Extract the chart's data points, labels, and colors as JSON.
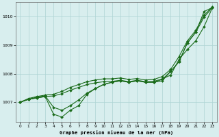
{
  "background_color": "#d8eeee",
  "grid_color": "#aed4d4",
  "line_color": "#1a6b1a",
  "marker_color": "#1a6b1a",
  "title": "Graphe pression niveau de la mer (hPa)",
  "xlim": [
    -0.5,
    23.5
  ],
  "ylim": [
    1006.3,
    1010.5
  ],
  "yticks": [
    1007,
    1008,
    1009,
    1010
  ],
  "xticks": [
    0,
    1,
    2,
    3,
    4,
    5,
    6,
    7,
    8,
    9,
    10,
    11,
    12,
    13,
    14,
    15,
    16,
    17,
    18,
    19,
    20,
    21,
    22,
    23
  ],
  "line1": [
    1007.0,
    1007.1,
    1007.15,
    1007.2,
    1007.22,
    1007.3,
    1007.42,
    1007.52,
    1007.62,
    1007.68,
    1007.72,
    1007.73,
    1007.77,
    1007.72,
    1007.77,
    1007.72,
    1007.73,
    1007.82,
    1007.95,
    1008.5,
    1008.85,
    1009.15,
    1009.65,
    1010.32
  ],
  "line2": [
    1007.0,
    1007.1,
    1007.18,
    1007.22,
    1006.82,
    1006.72,
    1006.88,
    1007.08,
    1007.32,
    1007.48,
    1007.62,
    1007.7,
    1007.75,
    1007.7,
    1007.75,
    1007.7,
    1007.7,
    1007.75,
    1008.08,
    1008.42,
    1009.08,
    1009.45,
    1010.18,
    1010.32
  ],
  "line3": [
    1007.0,
    1007.1,
    1007.15,
    1007.2,
    1006.58,
    1006.48,
    1006.72,
    1006.88,
    1007.28,
    1007.48,
    1007.63,
    1007.7,
    1007.75,
    1007.7,
    1007.75,
    1007.7,
    1007.7,
    1007.8,
    1008.08,
    1008.42,
    1009.08,
    1009.45,
    1009.98,
    1010.32
  ],
  "line4": [
    1007.0,
    1007.13,
    1007.2,
    1007.25,
    1007.28,
    1007.38,
    1007.52,
    1007.62,
    1007.72,
    1007.78,
    1007.82,
    1007.82,
    1007.85,
    1007.8,
    1007.83,
    1007.78,
    1007.8,
    1007.9,
    1008.15,
    1008.6,
    1009.15,
    1009.52,
    1010.05,
    1010.35
  ]
}
